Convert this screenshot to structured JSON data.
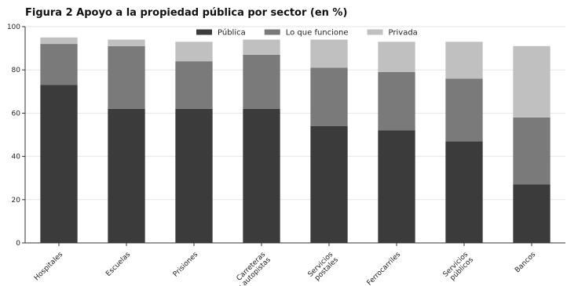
{
  "chart_data": {
    "type": "bar",
    "stacked": true,
    "title": "Figura 2   Apoyo a la propiedad pública por sector (en %)",
    "xlabel": "",
    "ylabel": "",
    "ylim": [
      0,
      100
    ],
    "yticks": [
      0,
      20,
      40,
      60,
      80,
      100
    ],
    "grid": "horizontal",
    "legend_position": "top-center",
    "categories": [
      [
        "Hospitales"
      ],
      [
        "Escuelas"
      ],
      [
        "Prisiones"
      ],
      [
        "Carreteras",
        "y autopistas"
      ],
      [
        "Servicios",
        "postales"
      ],
      [
        "Ferrocarriles"
      ],
      [
        "Servicios",
        "públicos"
      ],
      [
        "Bancos"
      ]
    ],
    "series": [
      {
        "name": "Pública",
        "color": "#3b3b3b",
        "values": [
          73,
          62,
          62,
          62,
          54,
          52,
          47,
          27
        ]
      },
      {
        "name": "Lo que funcione",
        "color": "#7a7a7a",
        "values": [
          19,
          29,
          22,
          25,
          27,
          27,
          29,
          31
        ]
      },
      {
        "name": "Privada",
        "color": "#c0c0c0",
        "values": [
          3,
          3,
          9,
          7,
          13,
          14,
          17,
          33
        ]
      }
    ]
  }
}
